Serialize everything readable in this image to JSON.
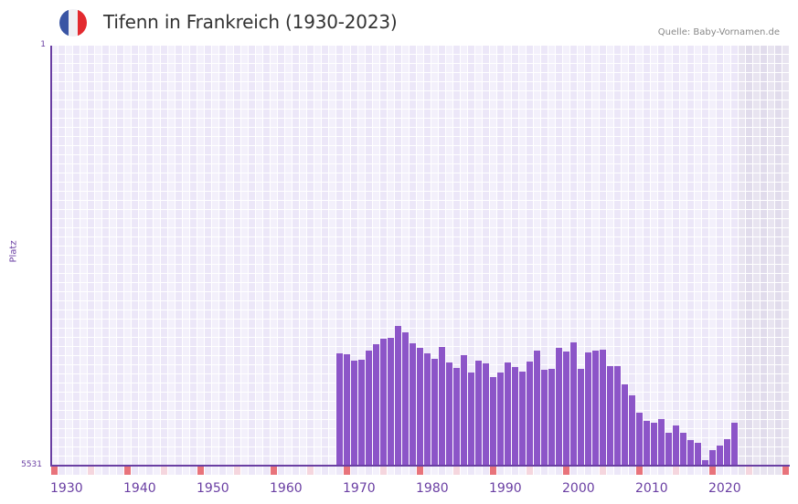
{
  "header": {
    "title": "Tifenn in Frankreich (1930-2023)",
    "source": "Quelle: Baby-Vornamen.de",
    "flag_colors": [
      "#3a55a4",
      "#f0f0f4",
      "#e32a2f"
    ]
  },
  "colors": {
    "bar": "#8c55c8",
    "axis": "#6a3fa3",
    "grid_light": "#f3f0fb",
    "grid_dark": "#ece7f8",
    "future_light": "#e8e4f0",
    "future_dark": "#e1dcec",
    "marker_decade": "#e8737b",
    "marker_half": "#f5d6de"
  },
  "chart_data": {
    "type": "bar",
    "title": "Tifenn in Frankreich (1930-2023)",
    "xlabel": "",
    "ylabel": "Platz",
    "y_inverted": true,
    "ylim": [
      1,
      5531
    ],
    "y_ticks": [
      "1",
      "5531"
    ],
    "x_range": [
      1930,
      2030
    ],
    "x_tick_labels": [
      "1930",
      "1940",
      "1950",
      "1960",
      "1970",
      "1980",
      "1990",
      "2000",
      "2010",
      "2020"
    ],
    "grid": true,
    "shaded_future_from": 2024,
    "categories": [
      1969,
      1970,
      1971,
      1972,
      1973,
      1974,
      1975,
      1976,
      1977,
      1978,
      1979,
      1980,
      1981,
      1982,
      1983,
      1984,
      1985,
      1986,
      1987,
      1988,
      1989,
      1990,
      1991,
      1992,
      1993,
      1994,
      1995,
      1996,
      1997,
      1998,
      1999,
      2000,
      2001,
      2002,
      2003,
      2004,
      2005,
      2006,
      2007,
      2008,
      2009,
      2010,
      2011,
      2012,
      2013,
      2014,
      2015,
      2016,
      2017,
      2018,
      2019,
      2020,
      2021,
      2022,
      2023
    ],
    "values": [
      4052,
      4064,
      4148,
      4136,
      4016,
      3932,
      3860,
      3848,
      3692,
      3776,
      3920,
      3980,
      4052,
      4124,
      3968,
      4172,
      4244,
      4076,
      4305,
      4148,
      4184,
      4365,
      4305,
      4172,
      4233,
      4293,
      4160,
      4016,
      4269,
      4257,
      3980,
      4028,
      3908,
      4257,
      4040,
      4016,
      4004,
      4221,
      4221,
      4461,
      4605,
      4834,
      4942,
      4966,
      4918,
      5098,
      5002,
      5098,
      5194,
      5230,
      5459,
      5327,
      5267,
      5183,
      4966
    ]
  }
}
